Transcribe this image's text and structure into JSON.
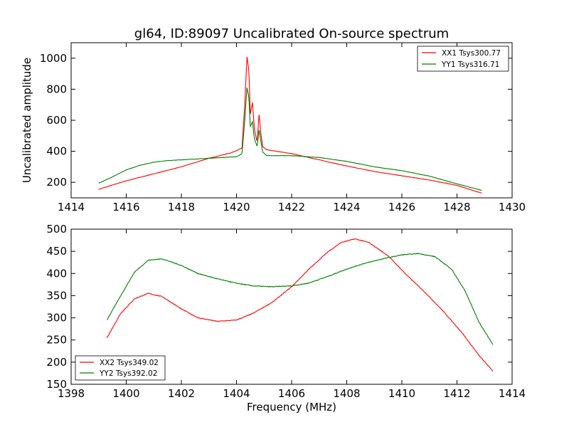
{
  "chart_data": [
    {
      "type": "line",
      "title": "gl64, ID:89097 Uncalibrated On-source spectrum",
      "xlabel": "",
      "ylabel": "Uncalibrated amplitude",
      "xlim": [
        1414,
        1430
      ],
      "ylim": [
        100,
        1100
      ],
      "x_ticks": [
        "1414",
        "1416",
        "1418",
        "1420",
        "1422",
        "1424",
        "1426",
        "1428",
        "1430"
      ],
      "y_ticks": [
        "200",
        "400",
        "600",
        "800",
        "1000"
      ],
      "grid": false,
      "legend_position": "top-right",
      "series": [
        {
          "name": "XX1 Tsys300.77",
          "color": "#ff0000",
          "points": [
            [
              1415.0,
              155
            ],
            [
              1416.0,
              210
            ],
            [
              1417.0,
              255
            ],
            [
              1418.0,
              300
            ],
            [
              1419.0,
              355
            ],
            [
              1419.8,
              390
            ],
            [
              1420.2,
              420
            ],
            [
              1420.3,
              700
            ],
            [
              1420.38,
              1010
            ],
            [
              1420.45,
              920
            ],
            [
              1420.5,
              640
            ],
            [
              1420.58,
              715
            ],
            [
              1420.65,
              540
            ],
            [
              1420.75,
              460
            ],
            [
              1420.82,
              640
            ],
            [
              1420.88,
              520
            ],
            [
              1420.95,
              430
            ],
            [
              1421.1,
              410
            ],
            [
              1422.0,
              385
            ],
            [
              1423.0,
              345
            ],
            [
              1424.0,
              305
            ],
            [
              1425.0,
              270
            ],
            [
              1426.0,
              242
            ],
            [
              1427.0,
              215
            ],
            [
              1428.0,
              180
            ],
            [
              1428.9,
              130
            ]
          ]
        },
        {
          "name": "YY1 Tsys316.71",
          "color": "#008000",
          "points": [
            [
              1415.0,
              195
            ],
            [
              1415.5,
              235
            ],
            [
              1416.0,
              280
            ],
            [
              1416.5,
              310
            ],
            [
              1417.0,
              330
            ],
            [
              1417.5,
              340
            ],
            [
              1418.0,
              345
            ],
            [
              1419.0,
              355
            ],
            [
              1420.0,
              365
            ],
            [
              1420.2,
              385
            ],
            [
              1420.3,
              600
            ],
            [
              1420.38,
              810
            ],
            [
              1420.45,
              750
            ],
            [
              1420.5,
              560
            ],
            [
              1420.58,
              590
            ],
            [
              1420.65,
              480
            ],
            [
              1420.75,
              430
            ],
            [
              1420.82,
              540
            ],
            [
              1420.88,
              470
            ],
            [
              1420.95,
              395
            ],
            [
              1421.1,
              372
            ],
            [
              1422.0,
              372
            ],
            [
              1423.0,
              360
            ],
            [
              1424.0,
              335
            ],
            [
              1425.0,
              300
            ],
            [
              1426.0,
              275
            ],
            [
              1427.0,
              240
            ],
            [
              1428.0,
              190
            ],
            [
              1428.9,
              148
            ]
          ]
        }
      ]
    },
    {
      "type": "line",
      "title": "",
      "xlabel": "Frequency (MHz)",
      "ylabel": "",
      "xlim": [
        1398,
        1414
      ],
      "ylim": [
        150,
        500
      ],
      "x_ticks": [
        "1398",
        "1400",
        "1402",
        "1404",
        "1406",
        "1408",
        "1410",
        "1412",
        "1414"
      ],
      "y_ticks": [
        "150",
        "200",
        "250",
        "300",
        "350",
        "400",
        "450",
        "500"
      ],
      "grid": false,
      "legend_position": "bottom-left",
      "series": [
        {
          "name": "XX2 Tsys349.02",
          "color": "#ff0000",
          "points": [
            [
              1399.3,
              255
            ],
            [
              1399.8,
              310
            ],
            [
              1400.3,
              343
            ],
            [
              1400.8,
              355
            ],
            [
              1401.3,
              348
            ],
            [
              1402.0,
              320
            ],
            [
              1402.6,
              300
            ],
            [
              1403.3,
              292
            ],
            [
              1404.0,
              295
            ],
            [
              1404.6,
              310
            ],
            [
              1405.3,
              335
            ],
            [
              1406.0,
              370
            ],
            [
              1406.6,
              408
            ],
            [
              1407.3,
              448
            ],
            [
              1407.8,
              470
            ],
            [
              1408.3,
              478
            ],
            [
              1408.8,
              470
            ],
            [
              1409.5,
              440
            ],
            [
              1410.2,
              395
            ],
            [
              1410.8,
              360
            ],
            [
              1411.5,
              315
            ],
            [
              1412.2,
              265
            ],
            [
              1412.8,
              215
            ],
            [
              1413.3,
              180
            ]
          ]
        },
        {
          "name": "YY2 Tsys392.02",
          "color": "#008000",
          "points": [
            [
              1399.3,
              295
            ],
            [
              1399.8,
              350
            ],
            [
              1400.3,
              403
            ],
            [
              1400.8,
              430
            ],
            [
              1401.3,
              433
            ],
            [
              1402.0,
              418
            ],
            [
              1402.6,
              400
            ],
            [
              1403.3,
              388
            ],
            [
              1404.0,
              378
            ],
            [
              1404.6,
              372
            ],
            [
              1405.3,
              370
            ],
            [
              1406.0,
              372
            ],
            [
              1406.6,
              378
            ],
            [
              1407.3,
              393
            ],
            [
              1408.0,
              410
            ],
            [
              1408.6,
              422
            ],
            [
              1409.3,
              433
            ],
            [
              1410.0,
              442
            ],
            [
              1410.6,
              445
            ],
            [
              1411.2,
              438
            ],
            [
              1411.8,
              410
            ],
            [
              1412.3,
              360
            ],
            [
              1412.8,
              290
            ],
            [
              1413.3,
              240
            ]
          ]
        }
      ]
    }
  ]
}
